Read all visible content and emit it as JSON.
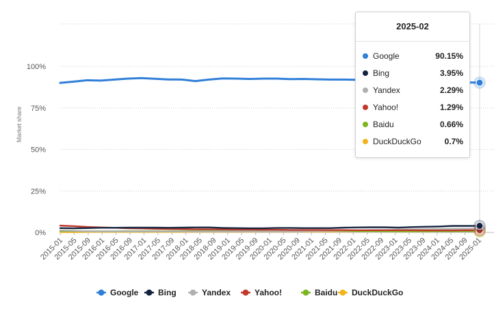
{
  "chart_data": {
    "type": "line",
    "title": "",
    "xlabel": "",
    "ylabel": "Market share",
    "ylim": [
      0,
      100
    ],
    "y_ticks": [
      "0%",
      "25%",
      "50%",
      "75%",
      "100%"
    ],
    "y_tick_values": [
      0,
      25,
      50,
      75,
      100
    ],
    "x_ticks": [
      "2015-01",
      "2015-05",
      "2015-09",
      "2016-01",
      "2016-05",
      "2016-09",
      "2017-01",
      "2017-05",
      "2017-09",
      "2018-01",
      "2018-05",
      "2018-09",
      "2019-01",
      "2019-05",
      "2019-09",
      "2020-01",
      "2020-05",
      "2020-09",
      "2021-01",
      "2021-05",
      "2021-09",
      "2022-01",
      "2022-05",
      "2022-09",
      "2023-01",
      "2023-05",
      "2023-09",
      "2024-01",
      "2024-05",
      "2024-09",
      "2025-01"
    ],
    "x": [
      "2015-01",
      "2015-05",
      "2015-09",
      "2016-01",
      "2016-05",
      "2016-09",
      "2017-01",
      "2017-05",
      "2017-09",
      "2018-01",
      "2018-05",
      "2018-09",
      "2019-01",
      "2019-05",
      "2019-09",
      "2020-01",
      "2020-05",
      "2020-09",
      "2021-01",
      "2021-05",
      "2021-09",
      "2022-01",
      "2022-05",
      "2022-09",
      "2023-01",
      "2023-05",
      "2023-09",
      "2024-01",
      "2024-05",
      "2024-09",
      "2025-01",
      "2025-02"
    ],
    "grid": true,
    "legend_position": "bottom",
    "series": [
      {
        "name": "Google",
        "color": "#2f7ed8",
        "values": [
          90.0,
          90.8,
          91.6,
          91.4,
          92.0,
          92.6,
          92.9,
          92.5,
          92.1,
          92.0,
          91.1,
          92.0,
          92.7,
          92.6,
          92.4,
          92.6,
          92.6,
          92.3,
          92.4,
          92.2,
          92.0,
          92.0,
          91.9,
          92.0,
          92.0,
          91.8,
          91.8,
          91.6,
          90.9,
          90.3,
          90.3,
          90.15
        ]
      },
      {
        "name": "Bing",
        "color": "#13233f",
        "values": [
          2.6,
          2.5,
          2.6,
          2.8,
          2.8,
          2.9,
          2.9,
          2.9,
          2.8,
          2.9,
          3.0,
          3.0,
          2.7,
          2.6,
          2.5,
          2.5,
          2.7,
          2.7,
          2.6,
          2.6,
          2.6,
          2.9,
          3.0,
          3.1,
          3.1,
          2.9,
          3.2,
          3.4,
          3.6,
          3.9,
          3.9,
          3.95
        ]
      },
      {
        "name": "Yandex",
        "color": "#b0b0b0",
        "values": [
          1.2,
          1.0,
          0.7,
          0.6,
          0.6,
          0.6,
          0.6,
          0.6,
          0.6,
          0.6,
          0.6,
          0.6,
          0.6,
          0.6,
          0.6,
          0.6,
          0.7,
          0.7,
          0.8,
          0.9,
          1.0,
          1.2,
          1.3,
          1.4,
          1.5,
          1.6,
          1.8,
          2.0,
          2.1,
          2.2,
          2.2,
          2.29
        ]
      },
      {
        "name": "Yahoo!",
        "color": "#c0392b",
        "values": [
          4.1,
          3.8,
          3.3,
          3.0,
          2.8,
          2.5,
          2.4,
          2.2,
          2.1,
          2.0,
          1.9,
          1.9,
          1.8,
          1.7,
          1.7,
          1.6,
          1.6,
          1.5,
          1.5,
          1.5,
          1.4,
          1.4,
          1.3,
          1.3,
          1.3,
          1.3,
          1.3,
          1.2,
          1.2,
          1.2,
          1.3,
          1.29
        ]
      },
      {
        "name": "Baidu",
        "color": "#7cb51e",
        "values": [
          0.8,
          0.8,
          0.7,
          0.7,
          0.7,
          0.8,
          0.8,
          0.8,
          0.8,
          0.9,
          0.9,
          1.0,
          1.2,
          1.1,
          1.0,
          1.0,
          1.1,
          1.0,
          1.0,
          1.0,
          1.0,
          0.9,
          0.8,
          0.8,
          0.7,
          0.7,
          0.7,
          0.7,
          0.7,
          0.7,
          0.7,
          0.66
        ]
      },
      {
        "name": "DuckDuckGo",
        "color": "#f2b41e",
        "values": [
          0.2,
          0.2,
          0.3,
          0.3,
          0.3,
          0.3,
          0.3,
          0.3,
          0.3,
          0.3,
          0.4,
          0.4,
          0.4,
          0.4,
          0.4,
          0.5,
          0.5,
          0.6,
          0.6,
          0.6,
          0.6,
          0.7,
          0.7,
          0.7,
          0.7,
          0.6,
          0.6,
          0.6,
          0.7,
          0.7,
          0.7,
          0.7
        ]
      }
    ],
    "tooltip": {
      "title": "2025-02",
      "rows": [
        {
          "name": "Google",
          "value": "90.15%",
          "color": "#2f7ed8"
        },
        {
          "name": "Bing",
          "value": "3.95%",
          "color": "#13233f"
        },
        {
          "name": "Yandex",
          "value": "2.29%",
          "color": "#b0b0b0"
        },
        {
          "name": "Yahoo!",
          "value": "1.29%",
          "color": "#c0392b"
        },
        {
          "name": "Baidu",
          "value": "0.66%",
          "color": "#7cb51e"
        },
        {
          "name": "DuckDuckGo",
          "value": "0.7%",
          "color": "#f2b41e"
        }
      ]
    }
  }
}
